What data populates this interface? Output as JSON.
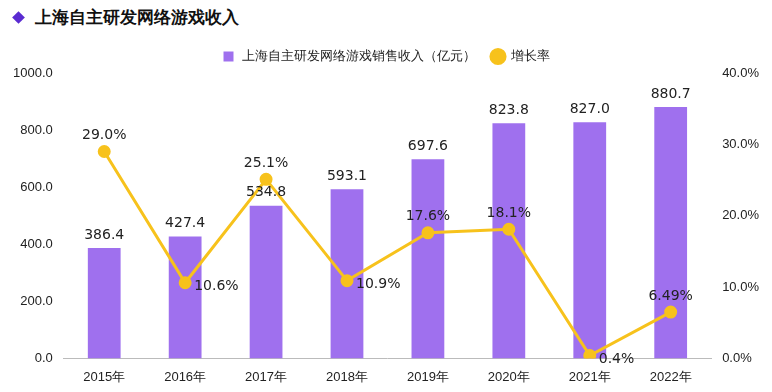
{
  "chart_data": {
    "type": "bar",
    "title": "上海自主研发网络游戏收入",
    "categories": [
      "2015年",
      "2016年",
      "2017年",
      "2018年",
      "2019年",
      "2020年",
      "2021年",
      "2022年"
    ],
    "series": [
      {
        "name": "上海自主研发网络游戏销售收入（亿元）",
        "type": "bar",
        "color": "#9f70ee",
        "values": [
          386.4,
          427.4,
          534.8,
          593.1,
          697.6,
          823.8,
          827.0,
          880.7
        ],
        "value_labels": [
          "386.4",
          "427.4",
          "534.8",
          "593.1",
          "697.6",
          "823.8",
          "827.0",
          "880.7"
        ]
      },
      {
        "name": "增长率",
        "type": "line",
        "axis": "y2",
        "color": "#f7c21c",
        "marker": "circle",
        "values": [
          29.0,
          10.6,
          25.1,
          10.9,
          17.6,
          18.1,
          0.4,
          6.49
        ],
        "value_labels": [
          "29.0%",
          "10.6%",
          "25.1%",
          "10.9%",
          "17.6%",
          "18.1%",
          "0.4%",
          "6.49%"
        ]
      }
    ],
    "ylim": [
      0,
      1000
    ],
    "yticks": [
      {
        "value": 0,
        "label": "0.0"
      },
      {
        "value": 200,
        "label": "200.0"
      },
      {
        "value": 400,
        "label": "400.0"
      },
      {
        "value": 600,
        "label": "600.0"
      },
      {
        "value": 800,
        "label": "800.0"
      },
      {
        "value": 1000,
        "label": "1000.0"
      }
    ],
    "y2lim": [
      0,
      40
    ],
    "y2ticks": [
      {
        "value": 0,
        "label": "0.0%"
      },
      {
        "value": 10,
        "label": "10.0%"
      },
      {
        "value": 20,
        "label": "20.0%"
      },
      {
        "value": 30,
        "label": "30.0%"
      },
      {
        "value": 40,
        "label": "40.0%"
      }
    ],
    "grid": false,
    "legend": "top",
    "data_labels": true
  }
}
